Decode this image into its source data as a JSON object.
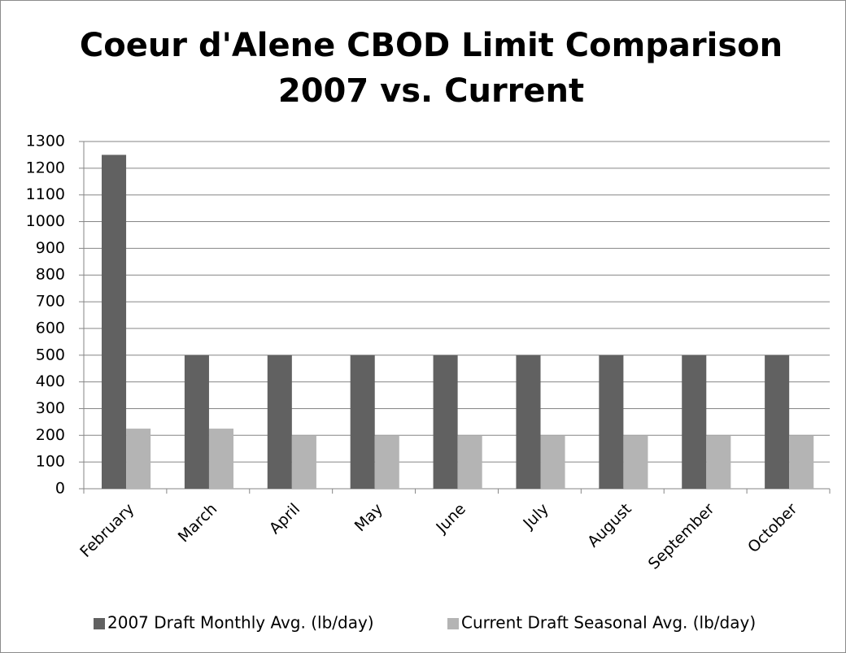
{
  "chart_data": {
    "type": "bar",
    "title": [
      "Coeur d'Alene CBOD Limit Comparison",
      "2007 vs. Current"
    ],
    "categories": [
      "February",
      "March",
      "April",
      "May",
      "June",
      "July",
      "August",
      "September",
      "October"
    ],
    "series": [
      {
        "name": "2007 Draft Monthly Avg. (lb/day)",
        "color": "#616161",
        "values": [
          1250,
          500,
          500,
          500,
          500,
          500,
          500,
          500,
          500
        ]
      },
      {
        "name": "Current Draft Seasonal Avg. (lb/day)",
        "color": "#b4b4b4",
        "values": [
          225,
          225,
          200,
          200,
          200,
          200,
          200,
          200,
          200
        ]
      }
    ],
    "ylim": [
      0,
      1300
    ],
    "yticks": [
      0,
      100,
      200,
      300,
      400,
      500,
      600,
      700,
      800,
      900,
      1000,
      1100,
      1200,
      1300
    ],
    "grid": true,
    "legend": "bottom"
  }
}
